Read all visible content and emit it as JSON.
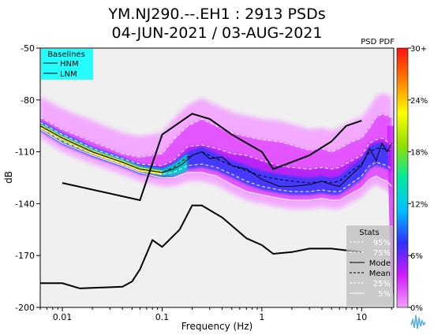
{
  "chart_data": {
    "type": "heatmap",
    "title_line1": "YM.NJ290.--.EH1 : 2913 PSDs",
    "title_line2": "04-JUN-2021 / 03-AUG-2021",
    "xlabel": "Frequency (Hz)",
    "ylabel": "dB",
    "x_scale": "log",
    "xlim": [
      0.006,
      21
    ],
    "ylim": [
      -200,
      -50
    ],
    "x_ticks": [
      0.01,
      0.1,
      1,
      10
    ],
    "x_tick_labels": [
      "0.01",
      "0.1",
      "1",
      "10"
    ],
    "y_ticks": [
      -50,
      -80,
      -110,
      -140,
      -170,
      -200
    ],
    "y_tick_labels": [
      "-50",
      "-80",
      "-110",
      "-140",
      "-170",
      "-200"
    ],
    "colorbar": {
      "title": "PSD PDF",
      "ticks": [
        0,
        6,
        12,
        18,
        24,
        30
      ],
      "tick_labels": [
        "0%",
        "6%",
        "12%",
        "18%",
        "24%",
        "30+"
      ],
      "colors": [
        "#f2a0ff",
        "#d01aff",
        "#3030ff",
        "#00c0ff",
        "#00e8a0",
        "#90e000",
        "#ffff00",
        "#ff8000",
        "#ff1010"
      ]
    },
    "baselines": {
      "title": "Baselines",
      "items": [
        "HNM",
        "LNM"
      ],
      "hnm": [
        [
          0.01,
          -128
        ],
        [
          0.06,
          -138
        ],
        [
          0.1,
          -100
        ],
        [
          0.2,
          -88
        ],
        [
          0.3,
          -91
        ],
        [
          0.5,
          -100
        ],
        [
          1,
          -110
        ],
        [
          1.3,
          -120
        ],
        [
          3,
          -112
        ],
        [
          5,
          -104
        ],
        [
          7,
          -95
        ],
        [
          10,
          -92
        ]
      ],
      "lnm": [
        [
          0.006,
          -186
        ],
        [
          0.01,
          -186
        ],
        [
          0.015,
          -189
        ],
        [
          0.04,
          -188
        ],
        [
          0.05,
          -185
        ],
        [
          0.06,
          -178
        ],
        [
          0.08,
          -161
        ],
        [
          0.1,
          -165
        ],
        [
          0.15,
          -155
        ],
        [
          0.2,
          -141
        ],
        [
          0.25,
          -141
        ],
        [
          0.4,
          -148
        ],
        [
          0.7,
          -160
        ],
        [
          1,
          -164
        ],
        [
          1.3,
          -169
        ],
        [
          2,
          -168
        ],
        [
          3,
          -166
        ],
        [
          5,
          -166
        ],
        [
          7,
          -167
        ],
        [
          10,
          -168
        ]
      ]
    },
    "stats": {
      "title": "Stats",
      "items": [
        {
          "name": "95%",
          "style": "dashed",
          "color": "#ffffff"
        },
        {
          "name": "75%",
          "style": "dashed",
          "color": "#ffffff"
        },
        {
          "name": "Mode",
          "style": "solid",
          "color": "#000000"
        },
        {
          "name": "Mean",
          "style": "dashed",
          "color": "#000000"
        },
        {
          "name": "25%",
          "style": "dashed",
          "color": "#ffffff"
        },
        {
          "name": "5%",
          "style": "solid",
          "color": "#ffffff"
        }
      ]
    },
    "series": [
      {
        "name": "95%",
        "points": [
          [
            0.006,
            -90
          ],
          [
            0.01,
            -97
          ],
          [
            0.02,
            -104
          ],
          [
            0.04,
            -111
          ],
          [
            0.06,
            -113
          ],
          [
            0.1,
            -111
          ],
          [
            0.13,
            -103
          ],
          [
            0.18,
            -95
          ],
          [
            0.25,
            -91
          ],
          [
            0.35,
            -95
          ],
          [
            0.5,
            -99
          ],
          [
            0.7,
            -101
          ],
          [
            1,
            -103
          ],
          [
            1.5,
            -104
          ],
          [
            2,
            -106
          ],
          [
            3,
            -109
          ],
          [
            4,
            -108
          ],
          [
            5,
            -110
          ],
          [
            6,
            -108
          ],
          [
            8,
            -104
          ],
          [
            10,
            -102
          ],
          [
            12,
            -96
          ],
          [
            14,
            -90
          ],
          [
            16,
            -88
          ],
          [
            18,
            -89
          ],
          [
            20,
            -90
          ]
        ]
      },
      {
        "name": "75%",
        "points": [
          [
            0.006,
            -93
          ],
          [
            0.01,
            -100
          ],
          [
            0.02,
            -108
          ],
          [
            0.04,
            -114
          ],
          [
            0.06,
            -117
          ],
          [
            0.1,
            -118
          ],
          [
            0.13,
            -115
          ],
          [
            0.18,
            -107
          ],
          [
            0.25,
            -106
          ],
          [
            0.35,
            -108
          ],
          [
            0.5,
            -111
          ],
          [
            0.7,
            -112
          ],
          [
            1,
            -115
          ],
          [
            1.5,
            -118
          ],
          [
            2,
            -119
          ],
          [
            3,
            -120
          ],
          [
            4,
            -119
          ],
          [
            5,
            -120
          ],
          [
            6,
            -119
          ],
          [
            8,
            -115
          ],
          [
            10,
            -112
          ],
          [
            12,
            -105
          ],
          [
            14,
            -103
          ],
          [
            16,
            -102
          ],
          [
            18,
            -104
          ],
          [
            20,
            -106
          ]
        ]
      },
      {
        "name": "Mode",
        "points": [
          [
            0.006,
            -95
          ],
          [
            0.01,
            -102
          ],
          [
            0.02,
            -110
          ],
          [
            0.04,
            -116
          ],
          [
            0.06,
            -120
          ],
          [
            0.1,
            -122
          ],
          [
            0.13,
            -120
          ],
          [
            0.16,
            -117
          ],
          [
            0.2,
            -112
          ],
          [
            0.25,
            -110
          ],
          [
            0.3,
            -114
          ],
          [
            0.4,
            -113
          ],
          [
            0.5,
            -118
          ],
          [
            0.7,
            -120
          ],
          [
            1,
            -126
          ],
          [
            1.5,
            -130
          ],
          [
            2,
            -130
          ],
          [
            3,
            -129
          ],
          [
            4,
            -127
          ],
          [
            5,
            -129
          ],
          [
            6,
            -130
          ],
          [
            8,
            -123
          ],
          [
            10,
            -118
          ],
          [
            12,
            -108
          ],
          [
            14,
            -115
          ],
          [
            16,
            -105
          ],
          [
            18,
            -110
          ],
          [
            20,
            -105
          ]
        ]
      },
      {
        "name": "Mean",
        "points": [
          [
            0.006,
            -95
          ],
          [
            0.01,
            -102
          ],
          [
            0.02,
            -110
          ],
          [
            0.04,
            -116
          ],
          [
            0.06,
            -120
          ],
          [
            0.1,
            -122
          ],
          [
            0.13,
            -119
          ],
          [
            0.18,
            -113
          ],
          [
            0.25,
            -110
          ],
          [
            0.35,
            -114
          ],
          [
            0.5,
            -118
          ],
          [
            0.7,
            -121
          ],
          [
            1,
            -124
          ],
          [
            1.5,
            -126
          ],
          [
            2,
            -127
          ],
          [
            3,
            -128
          ],
          [
            4,
            -127
          ],
          [
            5,
            -128
          ],
          [
            6,
            -127
          ],
          [
            8,
            -121
          ],
          [
            10,
            -117
          ],
          [
            12,
            -110
          ],
          [
            14,
            -108
          ],
          [
            16,
            -108
          ],
          [
            18,
            -109
          ],
          [
            20,
            -110
          ]
        ]
      },
      {
        "name": "25%",
        "points": [
          [
            0.006,
            -96
          ],
          [
            0.01,
            -104
          ],
          [
            0.02,
            -111
          ],
          [
            0.04,
            -117
          ],
          [
            0.06,
            -121
          ],
          [
            0.1,
            -123
          ],
          [
            0.13,
            -122
          ],
          [
            0.18,
            -118
          ],
          [
            0.25,
            -117
          ],
          [
            0.35,
            -119
          ],
          [
            0.5,
            -123
          ],
          [
            0.7,
            -127
          ],
          [
            1,
            -130
          ],
          [
            1.5,
            -132
          ],
          [
            2,
            -133
          ],
          [
            3,
            -133
          ],
          [
            4,
            -132
          ],
          [
            5,
            -133
          ],
          [
            6,
            -133
          ],
          [
            8,
            -128
          ],
          [
            10,
            -124
          ],
          [
            12,
            -118
          ],
          [
            14,
            -116
          ],
          [
            16,
            -117
          ],
          [
            18,
            -118
          ],
          [
            20,
            -120
          ]
        ]
      },
      {
        "name": "5%",
        "points": [
          [
            0.006,
            -97
          ],
          [
            0.01,
            -105
          ],
          [
            0.02,
            -112
          ],
          [
            0.04,
            -118
          ],
          [
            0.06,
            -122
          ],
          [
            0.1,
            -125
          ],
          [
            0.13,
            -125
          ],
          [
            0.18,
            -122
          ],
          [
            0.25,
            -122
          ],
          [
            0.35,
            -124
          ],
          [
            0.5,
            -129
          ],
          [
            0.7,
            -133
          ],
          [
            1,
            -135
          ],
          [
            1.5,
            -137
          ],
          [
            2,
            -138
          ],
          [
            3,
            -138
          ],
          [
            4,
            -137
          ],
          [
            5,
            -138
          ],
          [
            6,
            -138
          ],
          [
            8,
            -134
          ],
          [
            10,
            -131
          ],
          [
            12,
            -126
          ],
          [
            14,
            -124
          ],
          [
            16,
            -126
          ],
          [
            18,
            -127
          ],
          [
            20,
            -130
          ]
        ]
      }
    ],
    "grid": false,
    "background": "#f0f0f0"
  }
}
